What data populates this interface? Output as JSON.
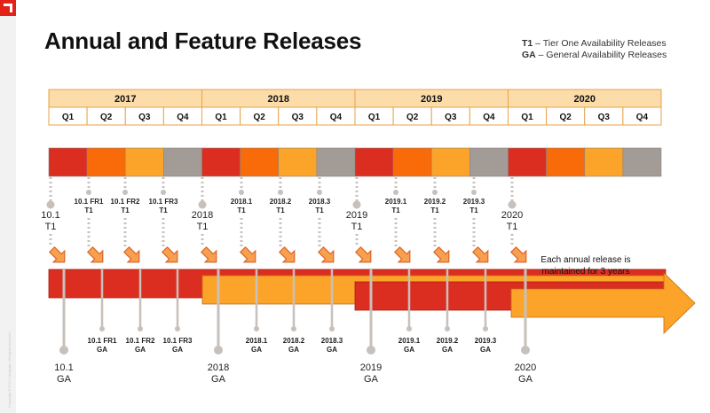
{
  "title": "Annual and Feature Releases",
  "legend": {
    "t1_code": "T1",
    "t1_text": " – Tier One Availability Releases",
    "ga_code": "GA",
    "ga_text": " – General Availability Releases"
  },
  "years": [
    "2017",
    "2018",
    "2019",
    "2020"
  ],
  "quarters": [
    "Q1",
    "Q2",
    "Q3",
    "Q4"
  ],
  "colors": {
    "q1": "#dc2e20",
    "q2": "#f96a08",
    "q3": "#fba429",
    "q4": "#a39b96",
    "year_header": "#fcdca8",
    "red_bar": "#dc2e20",
    "orange_bar": "#fca42a",
    "arrow_fill": "#f9a04e",
    "arrow_stroke": "#d9662a",
    "pin": "#c7c0bb",
    "logo": "#e2231a"
  },
  "t1_releases": [
    {
      "line1": "10.1",
      "line2": "T1",
      "major": true
    },
    {
      "line1": "10.1 FR1",
      "line2": "T1",
      "major": false
    },
    {
      "line1": "10.1 FR2",
      "line2": "T1",
      "major": false
    },
    {
      "line1": "10.1 FR3",
      "line2": "T1",
      "major": false
    },
    {
      "line1": "2018",
      "line2": "T1",
      "major": true
    },
    {
      "line1": "2018.1",
      "line2": "T1",
      "major": false
    },
    {
      "line1": "2018.2",
      "line2": "T1",
      "major": false
    },
    {
      "line1": "2018.3",
      "line2": "T1",
      "major": false
    },
    {
      "line1": "2019",
      "line2": "T1",
      "major": true
    },
    {
      "line1": "2019.1",
      "line2": "T1",
      "major": false
    },
    {
      "line1": "2019.2",
      "line2": "T1",
      "major": false
    },
    {
      "line1": "2019.3",
      "line2": "T1",
      "major": false
    },
    {
      "line1": "2020",
      "line2": "T1",
      "major": true
    }
  ],
  "ga_releases": [
    {
      "line1": "10.1",
      "line2": "GA",
      "major": true
    },
    {
      "line1": "10.1 FR1",
      "line2": "GA",
      "major": false
    },
    {
      "line1": "10.1 FR2",
      "line2": "GA",
      "major": false
    },
    {
      "line1": "10.1 FR3",
      "line2": "GA",
      "major": false
    },
    {
      "line1": "2018",
      "line2": "GA",
      "major": true
    },
    {
      "line1": "2018.1",
      "line2": "GA",
      "major": false
    },
    {
      "line1": "2018.2",
      "line2": "GA",
      "major": false
    },
    {
      "line1": "2018.3",
      "line2": "GA",
      "major": false
    },
    {
      "line1": "2019",
      "line2": "GA",
      "major": true
    },
    {
      "line1": "2019.1",
      "line2": "GA",
      "major": false
    },
    {
      "line1": "2019.2",
      "line2": "GA",
      "major": false
    },
    {
      "line1": "2019.3",
      "line2": "GA",
      "major": false
    },
    {
      "line1": "2020",
      "line2": "GA",
      "major": true
    }
  ],
  "maintenance_note_line1": "Each annual release is",
  "maintenance_note_line2": "maintained for 3 years",
  "copyright": "Copyright © 2017 Intergraph. All rights reserved."
}
